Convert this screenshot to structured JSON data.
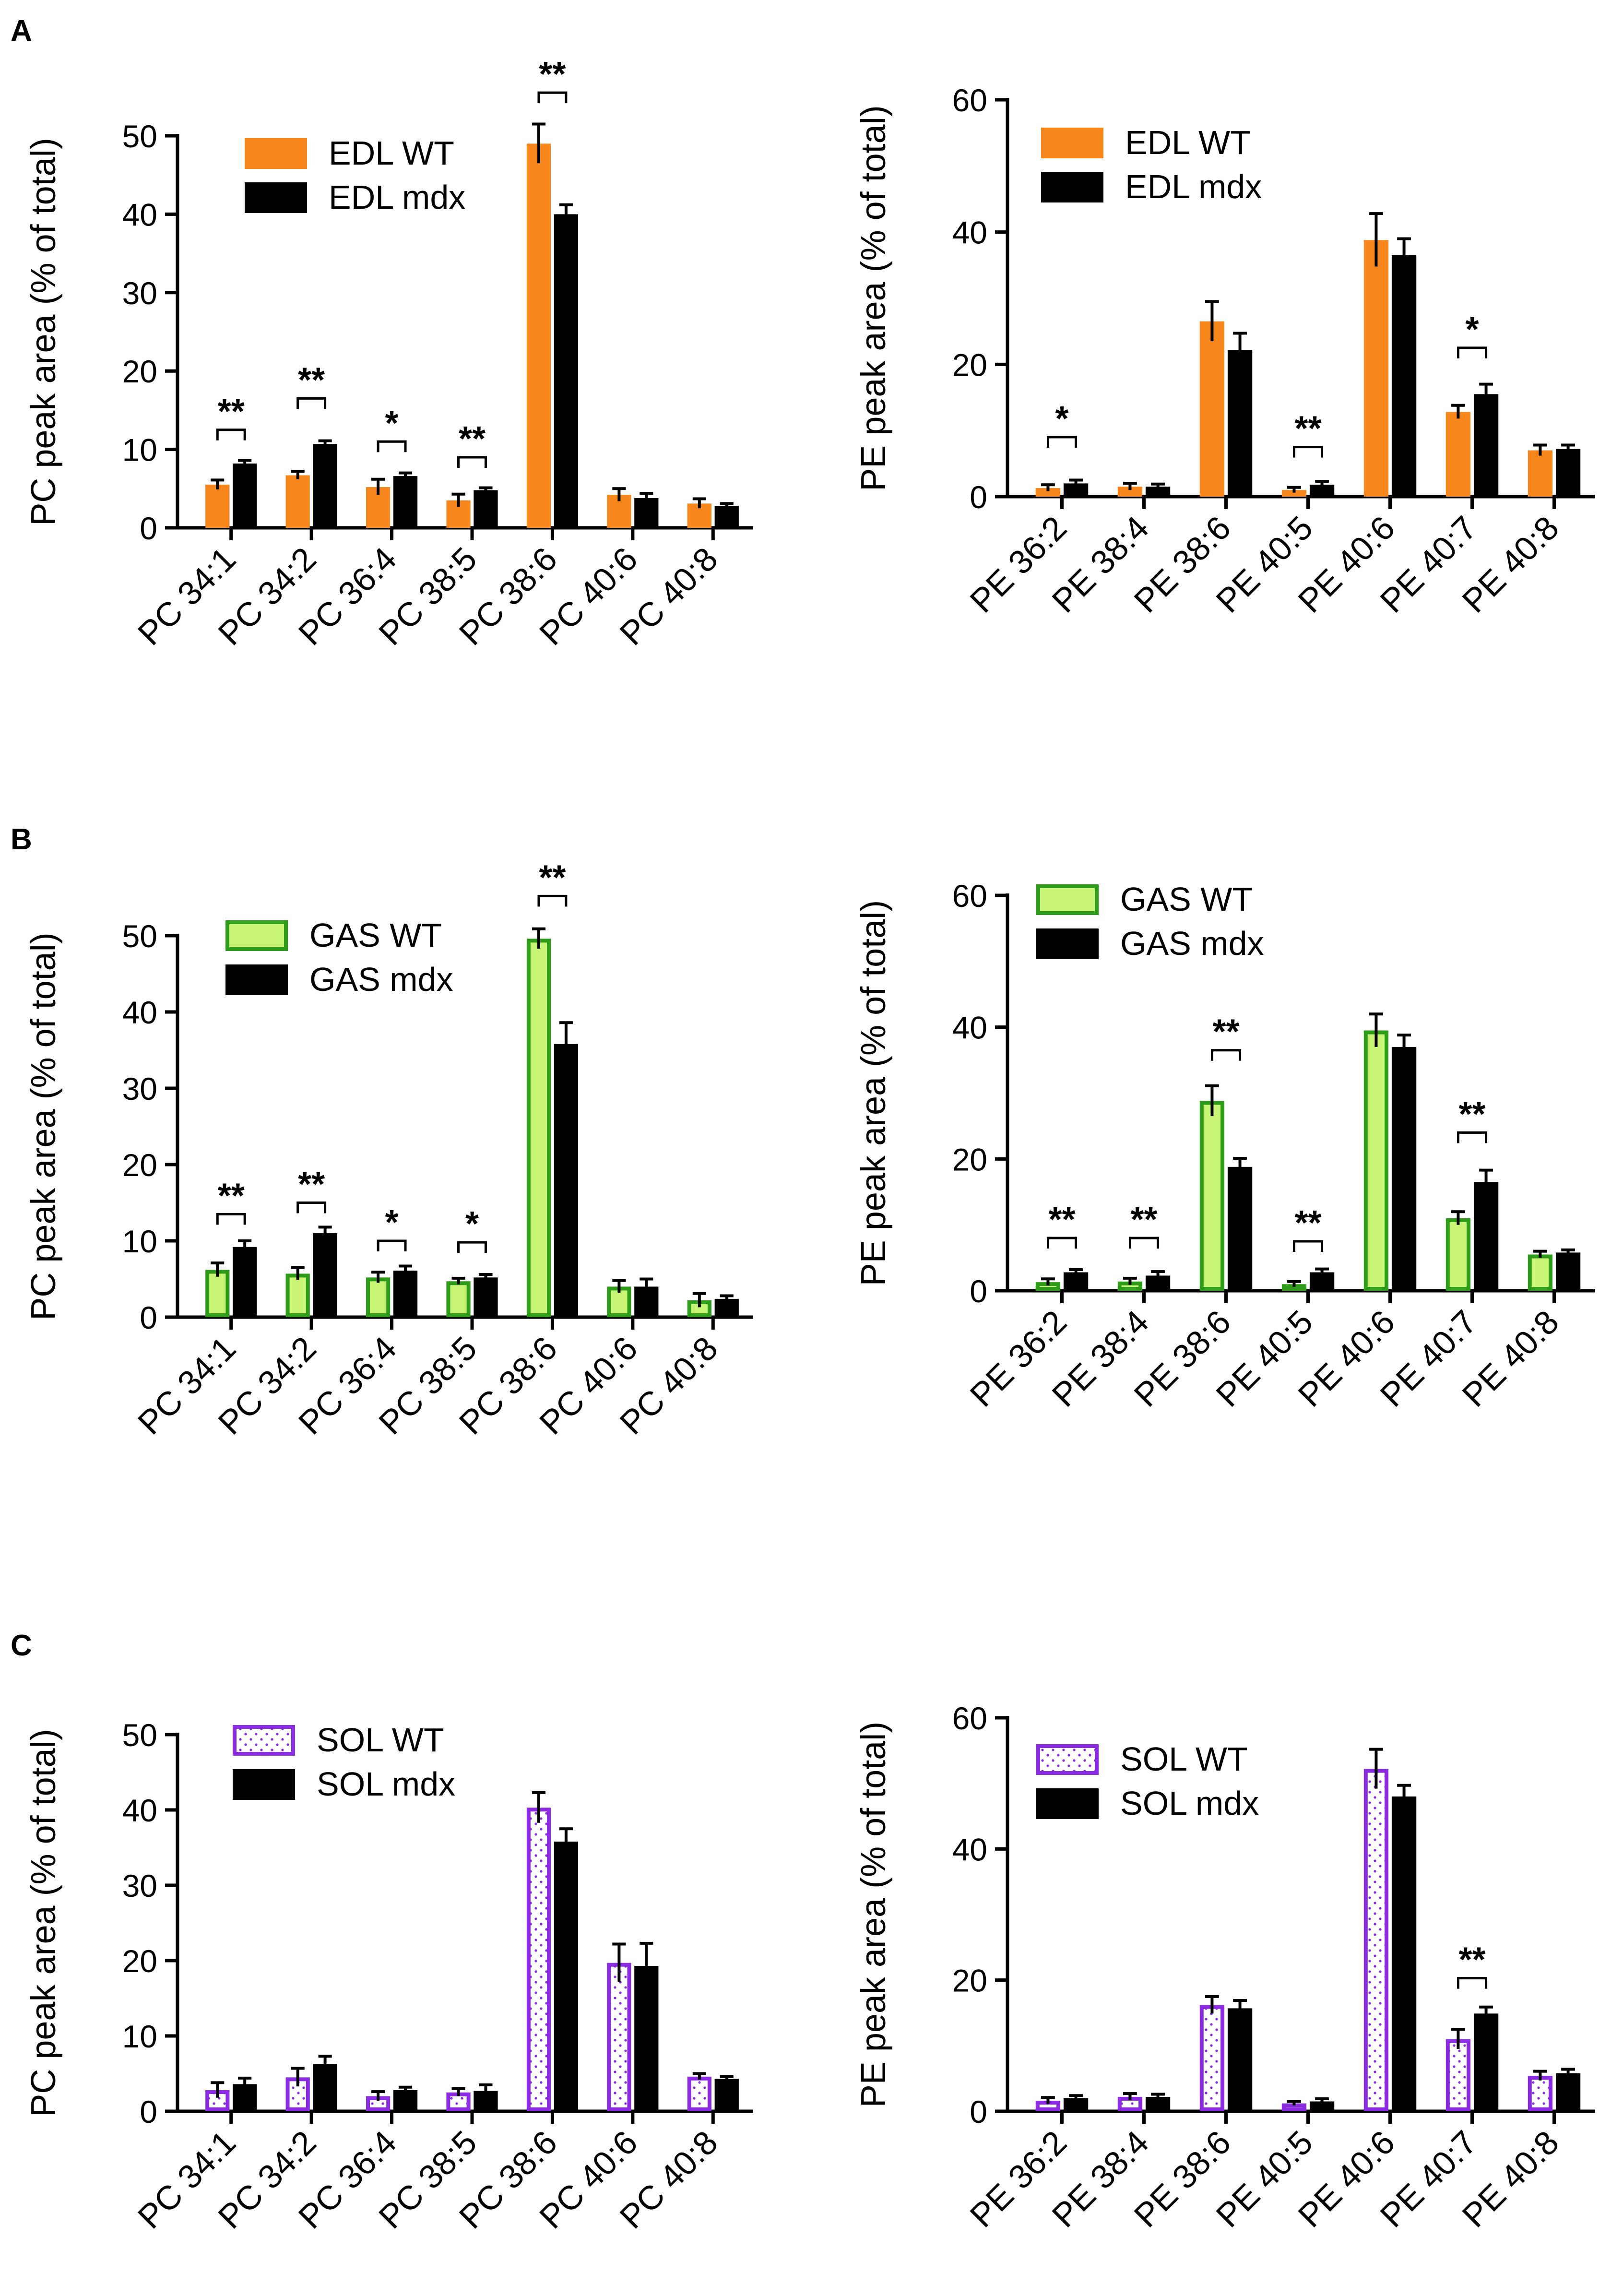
{
  "panels": [
    {
      "letter": "A"
    },
    {
      "letter": "B"
    },
    {
      "letter": "C"
    }
  ],
  "colors": {
    "edl": "#f7861c",
    "gas_fill": "#c8f576",
    "gas_edge": "#2e9b1a",
    "sol_edge": "#8a2be2",
    "mdx": "#000000"
  },
  "chart_data": [
    {
      "id": "A-PC",
      "type": "bar",
      "style": "edl",
      "ylabel": "PC peak area (% of total)",
      "ylim": [
        0,
        50
      ],
      "yticks": [
        0,
        10,
        20,
        30,
        40,
        50
      ],
      "categories": [
        "PC 34:1",
        "PC 34:2",
        "PC 36:4",
        "PC 38:5",
        "PC 38:6",
        "PC 40:6",
        "PC 40:8"
      ],
      "series": [
        {
          "name": "EDL WT",
          "values": [
            5.5,
            6.7,
            5.2,
            3.5,
            49.0,
            4.2,
            3.1
          ],
          "errors": [
            0.6,
            0.5,
            1.0,
            0.8,
            2.5,
            0.8,
            0.6
          ]
        },
        {
          "name": "EDL mdx",
          "values": [
            8.2,
            10.7,
            6.6,
            4.8,
            40.0,
            3.8,
            2.8
          ],
          "errors": [
            0.4,
            0.4,
            0.4,
            0.3,
            1.2,
            0.6,
            0.3
          ]
        }
      ],
      "significance": [
        {
          "index": 0,
          "label": "**",
          "at": 12.5
        },
        {
          "index": 1,
          "label": "**",
          "at": 16.5
        },
        {
          "index": 2,
          "label": "*",
          "at": 11.0
        },
        {
          "index": 3,
          "label": "**",
          "at": 9.0
        },
        {
          "index": 4,
          "label": "**",
          "at": 55.5
        }
      ]
    },
    {
      "id": "A-PE",
      "type": "bar",
      "style": "edl",
      "ylabel": "PE peak area (% of total)",
      "ylim": [
        0,
        60
      ],
      "yticks": [
        0,
        20,
        40,
        60
      ],
      "categories": [
        "PE 36:2",
        "PE 38:4",
        "PE 38:6",
        "PE 40:5",
        "PE 40:6",
        "PE 40:7",
        "PE 40:8"
      ],
      "series": [
        {
          "name": "EDL WT",
          "values": [
            1.3,
            1.5,
            26.5,
            1.0,
            38.8,
            12.8,
            7.0
          ],
          "errors": [
            0.5,
            0.5,
            3.0,
            0.4,
            4.0,
            1.0,
            0.8
          ]
        },
        {
          "name": "EDL mdx",
          "values": [
            2.0,
            1.5,
            22.2,
            1.8,
            36.5,
            15.5,
            7.2
          ],
          "errors": [
            0.5,
            0.4,
            2.5,
            0.5,
            2.5,
            1.5,
            0.6
          ]
        }
      ],
      "significance": [
        {
          "index": 0,
          "label": "*",
          "at": 9.0
        },
        {
          "index": 3,
          "label": "**",
          "at": 7.5
        },
        {
          "index": 5,
          "label": "*",
          "at": 22.5
        }
      ]
    },
    {
      "id": "B-PC",
      "type": "bar",
      "style": "gas",
      "ylabel": "PC peak area (% of total)",
      "ylim": [
        0,
        50
      ],
      "yticks": [
        0,
        10,
        20,
        30,
        40,
        50
      ],
      "categories": [
        "PC 34:1",
        "PC 34:2",
        "PC 36:4",
        "PC 38:5",
        "PC 38:6",
        "PC 40:6",
        "PC 40:8"
      ],
      "series": [
        {
          "name": "GAS WT",
          "values": [
            6.2,
            5.7,
            5.2,
            4.7,
            49.6,
            4.0,
            2.2
          ],
          "errors": [
            0.9,
            0.8,
            0.7,
            0.4,
            1.3,
            0.8,
            0.9
          ]
        },
        {
          "name": "GAS mdx",
          "values": [
            9.2,
            11.0,
            6.1,
            5.2,
            35.8,
            4.0,
            2.4
          ],
          "errors": [
            0.8,
            0.8,
            0.6,
            0.4,
            2.8,
            1.0,
            0.4
          ]
        }
      ],
      "significance": [
        {
          "index": 0,
          "label": "**",
          "at": 13.5
        },
        {
          "index": 1,
          "label": "**",
          "at": 15.0
        },
        {
          "index": 2,
          "label": "*",
          "at": 10.0
        },
        {
          "index": 3,
          "label": "*",
          "at": 9.8
        },
        {
          "index": 4,
          "label": "**",
          "at": 55.2
        }
      ]
    },
    {
      "id": "B-PE",
      "type": "bar",
      "style": "gas",
      "ylabel": "PE peak area (% of total)",
      "ylim": [
        0,
        60
      ],
      "yticks": [
        0,
        20,
        40,
        60
      ],
      "categories": [
        "PE 36:2",
        "PE 38:4",
        "PE 38:6",
        "PE 40:5",
        "PE 40:6",
        "PE 40:7",
        "PE 40:8"
      ],
      "series": [
        {
          "name": "GAS WT",
          "values": [
            1.3,
            1.4,
            28.8,
            1.0,
            39.5,
            11.0,
            5.5
          ],
          "errors": [
            0.5,
            0.5,
            2.3,
            0.4,
            2.5,
            1.0,
            0.5
          ]
        },
        {
          "name": "GAS mdx",
          "values": [
            2.8,
            2.3,
            18.8,
            2.8,
            37.0,
            16.5,
            5.8
          ],
          "errors": [
            0.4,
            0.6,
            1.3,
            0.5,
            1.8,
            1.8,
            0.4
          ]
        }
      ],
      "significance": [
        {
          "index": 0,
          "label": "**",
          "at": 8.0
        },
        {
          "index": 1,
          "label": "**",
          "at": 8.0
        },
        {
          "index": 2,
          "label": "**",
          "at": 36.5
        },
        {
          "index": 3,
          "label": "**",
          "at": 7.5
        },
        {
          "index": 5,
          "label": "**",
          "at": 24.0
        }
      ]
    },
    {
      "id": "C-PC",
      "type": "bar",
      "style": "sol",
      "ylabel": "PC peak area (% of total)",
      "ylim": [
        0,
        50
      ],
      "yticks": [
        0,
        10,
        20,
        30,
        40,
        50
      ],
      "categories": [
        "PC 34:1",
        "PC 34:2",
        "PC 36:4",
        "PC 38:5",
        "PC 38:6",
        "PC 40:6",
        "PC 40:8"
      ],
      "series": [
        {
          "name": "SOL WT",
          "values": [
            2.8,
            4.5,
            2.0,
            2.5,
            40.3,
            19.7,
            4.6
          ],
          "errors": [
            1.0,
            1.2,
            0.6,
            0.5,
            2.0,
            2.5,
            0.4
          ]
        },
        {
          "name": "SOL mdx",
          "values": [
            3.6,
            6.3,
            2.8,
            2.7,
            35.8,
            19.3,
            4.3
          ],
          "errors": [
            0.8,
            1.0,
            0.4,
            0.8,
            1.7,
            3.0,
            0.3
          ]
        }
      ],
      "significance": []
    },
    {
      "id": "C-PE",
      "type": "bar",
      "style": "sol",
      "ylabel": "PE peak area (% of total)",
      "ylim": [
        0,
        60
      ],
      "yticks": [
        0,
        20,
        40,
        60
      ],
      "categories": [
        "PE 36:2",
        "PE 38:4",
        "PE 38:6",
        "PE 40:5",
        "PE 40:6",
        "PE 40:7",
        "PE 40:8"
      ],
      "series": [
        {
          "name": "SOL WT",
          "values": [
            1.6,
            2.2,
            16.2,
            1.2,
            52.2,
            11.0,
            5.4
          ],
          "errors": [
            0.5,
            0.5,
            1.3,
            0.3,
            3.0,
            1.5,
            0.7
          ]
        },
        {
          "name": "SOL mdx",
          "values": [
            2.0,
            2.2,
            15.7,
            1.5,
            48.0,
            14.9,
            5.8
          ],
          "errors": [
            0.4,
            0.4,
            1.2,
            0.4,
            1.7,
            1.0,
            0.6
          ]
        }
      ],
      "significance": [
        {
          "index": 5,
          "label": "**",
          "at": 20.3
        }
      ]
    }
  ]
}
